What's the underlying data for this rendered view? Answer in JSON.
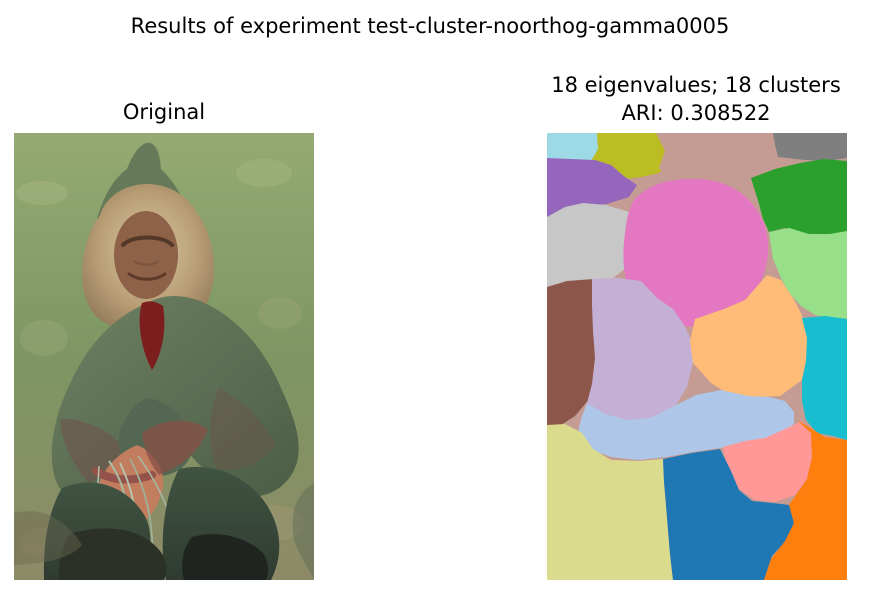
{
  "figure": {
    "suptitle": "Results of experiment test-cluster-noorthog-gamma0005"
  },
  "panels": {
    "original": {
      "title": "Original"
    },
    "segmentation": {
      "title_line1": "18 eigenvalues; 18 clusters",
      "title_line2": "ARI: 0.308522"
    }
  },
  "colors": {
    "c1": "#1f77b4",
    "c2": "#aec7e8",
    "c3": "#ff7f0e",
    "c4": "#ffbb78",
    "c5": "#2ca02c",
    "c6": "#98df8a",
    "c7": "#ff9896",
    "c8": "#9467bd",
    "c9": "#c5b0d5",
    "c10": "#8c564b",
    "c11": "#c49c94",
    "c12": "#e377c2",
    "c13": "#7f7f7f",
    "c14": "#c7c7c7",
    "c15": "#bcbd22",
    "c16": "#dbdb8d",
    "c17": "#17becf",
    "c18": "#9edae5"
  }
}
